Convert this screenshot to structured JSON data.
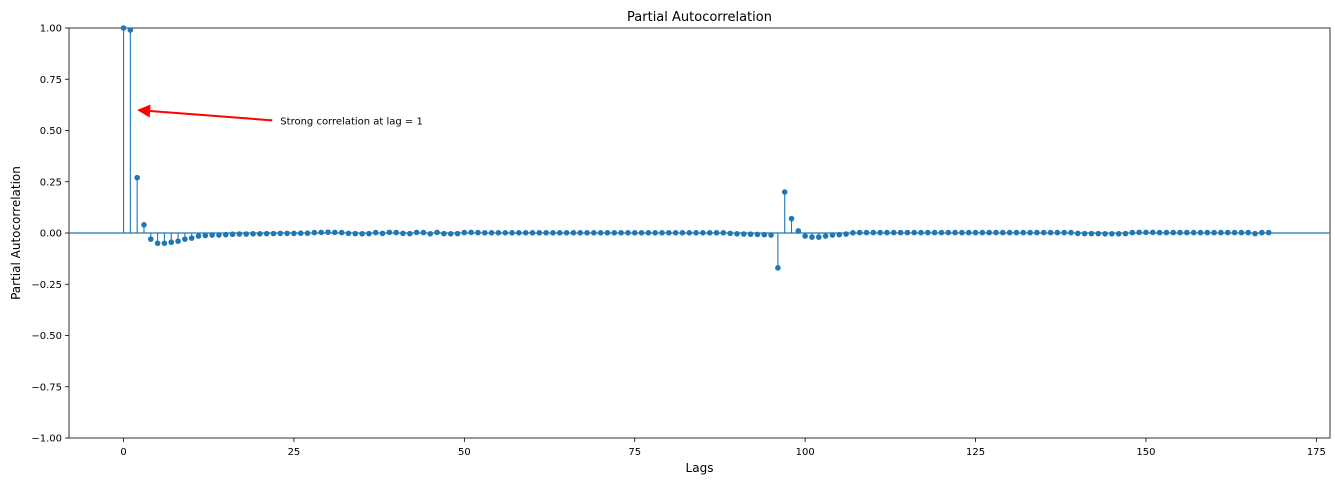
{
  "chart_data": {
    "type": "stem",
    "title": "Partial Autocorrelation",
    "xlabel": "Lags",
    "ylabel": "Partial Autocorrelation",
    "xlim": [
      -8,
      177
    ],
    "ylim": [
      -1.0,
      1.0
    ],
    "xticks": [
      0,
      25,
      50,
      75,
      100,
      125,
      150,
      175
    ],
    "xtick_labels": [
      "0",
      "25",
      "50",
      "75",
      "100",
      "125",
      "150",
      "175"
    ],
    "yticks": [
      1.0,
      0.75,
      0.5,
      0.25,
      0.0,
      -0.25,
      -0.5,
      -0.75,
      -1.0
    ],
    "ytick_labels": [
      "1.00",
      "0.75",
      "0.50",
      "0.25",
      "0.00",
      "−0.25",
      "−0.50",
      "−0.75",
      "−1.00"
    ],
    "grid": false,
    "legend": "none",
    "colors": {
      "series": "#1f77b4",
      "annotation_arrow": "#ff0000",
      "axes": "#000000"
    },
    "series": [
      {
        "lags": [
          0,
          1,
          2,
          3,
          4,
          5,
          6,
          7,
          8,
          9,
          10,
          11,
          12,
          13,
          14,
          15,
          16,
          17,
          18,
          19,
          20,
          21,
          22,
          23,
          24,
          25,
          26,
          27,
          28,
          29,
          30,
          31,
          32,
          33,
          34,
          35,
          36,
          37,
          38,
          39,
          40,
          41,
          42,
          43,
          44,
          45,
          46,
          47,
          48,
          49,
          50,
          51,
          52,
          53,
          54,
          55,
          56,
          57,
          58,
          59,
          60,
          61,
          62,
          63,
          64,
          65,
          66,
          67,
          68,
          69,
          70,
          71,
          72,
          73,
          74,
          75,
          76,
          77,
          78,
          79,
          80,
          81,
          82,
          83,
          84,
          85,
          86,
          87,
          88,
          89,
          90,
          91,
          92,
          93,
          94,
          95,
          96,
          97,
          98,
          99,
          100,
          101,
          102,
          103,
          104,
          105,
          106,
          107,
          108,
          109,
          110,
          111,
          112,
          113,
          114,
          115,
          116,
          117,
          118,
          119,
          120,
          121,
          122,
          123,
          124,
          125,
          126,
          127,
          128,
          129,
          130,
          131,
          132,
          133,
          134,
          135,
          136,
          137,
          138,
          139,
          140,
          141,
          142,
          143,
          144,
          145,
          146,
          147,
          148,
          149,
          150,
          151,
          152,
          153,
          154,
          155,
          156,
          157,
          158,
          159,
          160,
          161,
          162,
          163,
          164,
          165,
          166,
          167,
          168
        ],
        "values": [
          1.0,
          0.99,
          0.27,
          0.04,
          -0.03,
          -0.05,
          -0.05,
          -0.045,
          -0.04,
          -0.03,
          -0.025,
          -0.015,
          -0.012,
          -0.01,
          -0.01,
          -0.008,
          -0.006,
          -0.005,
          -0.005,
          -0.004,
          -0.004,
          -0.003,
          -0.003,
          -0.002,
          -0.002,
          -0.002,
          -0.001,
          -0.001,
          0.002,
          0.003,
          0.004,
          0.003,
          0.002,
          -0.002,
          -0.003,
          -0.004,
          -0.003,
          0.002,
          -0.002,
          0.003,
          0.002,
          -0.002,
          -0.003,
          0.003,
          0.002,
          -0.004,
          0.003,
          -0.003,
          -0.004,
          -0.003,
          0.002,
          0.003,
          0.002,
          0.001,
          0.001,
          0.001,
          0.001,
          0.001,
          0.001,
          0.001,
          0.001,
          0.001,
          0.001,
          0.001,
          0.001,
          0.001,
          0.001,
          0.001,
          0.001,
          0.001,
          0.001,
          0.001,
          0.001,
          0.001,
          0.001,
          0.001,
          0.001,
          0.001,
          0.001,
          0.001,
          0.001,
          0.001,
          0.001,
          0.001,
          0.001,
          0.001,
          0.001,
          0.001,
          0.001,
          -0.002,
          -0.004,
          -0.005,
          -0.006,
          -0.007,
          -0.008,
          -0.01,
          -0.17,
          0.2,
          0.07,
          0.01,
          -0.015,
          -0.02,
          -0.02,
          -0.015,
          -0.01,
          -0.008,
          -0.005,
          0.001,
          0.002,
          0.002,
          0.002,
          0.002,
          0.002,
          0.002,
          0.002,
          0.002,
          0.002,
          0.002,
          0.002,
          0.002,
          0.002,
          0.002,
          0.002,
          0.002,
          0.002,
          0.002,
          0.002,
          0.002,
          0.002,
          0.002,
          0.002,
          0.002,
          0.002,
          0.002,
          0.002,
          0.002,
          0.002,
          0.002,
          0.002,
          0.002,
          -0.002,
          -0.003,
          -0.003,
          -0.003,
          -0.004,
          -0.004,
          -0.004,
          -0.003,
          0.002,
          0.003,
          0.003,
          0.003,
          0.002,
          0.002,
          0.002,
          0.002,
          0.002,
          0.002,
          0.002,
          0.002,
          0.002,
          0.002,
          0.002,
          0.002,
          0.002,
          0.002,
          -0.003,
          0.002,
          0.002
        ]
      }
    ],
    "annotations": [
      {
        "text": "Strong correlation at lag = 1",
        "xy": [
          2,
          0.6
        ],
        "xytext": [
          23,
          0.53
        ]
      }
    ]
  }
}
